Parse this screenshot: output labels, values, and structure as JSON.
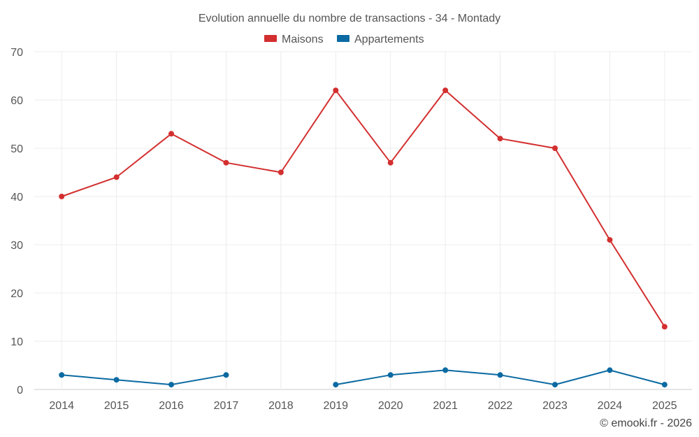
{
  "chart_data": {
    "type": "line",
    "title": "Evolution annuelle du nombre de transactions - 34 - Montady",
    "categories": [
      "2014",
      "2015",
      "2016",
      "2017",
      "2018",
      "2019",
      "2020",
      "2021",
      "2022",
      "2023",
      "2024",
      "2025"
    ],
    "series": [
      {
        "name": "Maisons",
        "color": "#d32f2f",
        "values": [
          40,
          44,
          53,
          47,
          45,
          62,
          47,
          62,
          52,
          50,
          31,
          13
        ]
      },
      {
        "name": "Appartements",
        "color": "#0b6aa2",
        "values": [
          3,
          2,
          1,
          3,
          null,
          1,
          3,
          4,
          3,
          1,
          4,
          1
        ]
      }
    ],
    "yticks": [
      0,
      10,
      20,
      30,
      40,
      50,
      60,
      70
    ],
    "ylim": [
      0,
      70
    ],
    "grid": true,
    "legend": "top-center",
    "xlabel": "",
    "ylabel": ""
  },
  "credit": "© emooki.fr - 2026"
}
